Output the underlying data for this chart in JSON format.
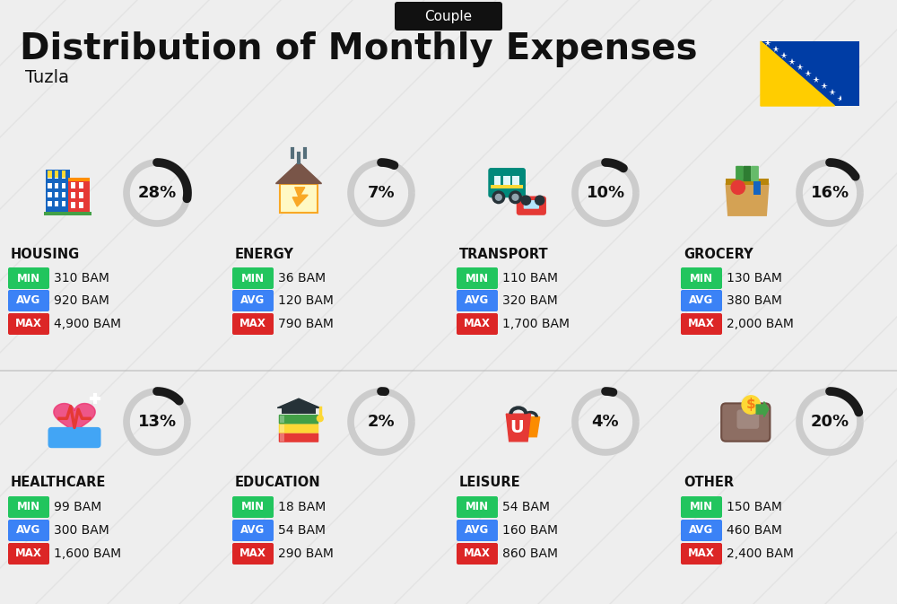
{
  "title": "Distribution of Monthly Expenses",
  "subtitle": "Tuzla",
  "tag": "Couple",
  "bg_color": "#eeeeee",
  "categories": [
    {
      "name": "HOUSING",
      "pct": 28,
      "min": "310 BAM",
      "avg": "920 BAM",
      "max": "4,900 BAM",
      "col": 0,
      "row": 0
    },
    {
      "name": "ENERGY",
      "pct": 7,
      "min": "36 BAM",
      "avg": "120 BAM",
      "max": "790 BAM",
      "col": 1,
      "row": 0
    },
    {
      "name": "TRANSPORT",
      "pct": 10,
      "min": "110 BAM",
      "avg": "320 BAM",
      "max": "1,700 BAM",
      "col": 2,
      "row": 0
    },
    {
      "name": "GROCERY",
      "pct": 16,
      "min": "130 BAM",
      "avg": "380 BAM",
      "max": "2,000 BAM",
      "col": 3,
      "row": 0
    },
    {
      "name": "HEALTHCARE",
      "pct": 13,
      "min": "99 BAM",
      "avg": "300 BAM",
      "max": "1,600 BAM",
      "col": 0,
      "row": 1
    },
    {
      "name": "EDUCATION",
      "pct": 2,
      "min": "18 BAM",
      "avg": "54 BAM",
      "max": "290 BAM",
      "col": 1,
      "row": 1
    },
    {
      "name": "LEISURE",
      "pct": 4,
      "min": "54 BAM",
      "avg": "160 BAM",
      "max": "860 BAM",
      "col": 2,
      "row": 1
    },
    {
      "name": "OTHER",
      "pct": 20,
      "min": "150 BAM",
      "avg": "460 BAM",
      "max": "2,400 BAM",
      "col": 3,
      "row": 1
    }
  ],
  "color_min": "#22c55e",
  "color_avg": "#3b82f6",
  "color_max": "#dc2626",
  "color_dark": "#111111",
  "ring_filled": "#1a1a1a",
  "ring_empty": "#cccccc",
  "tag_bg": "#111111",
  "tag_fg": "#ffffff",
  "flag_blue": "#003DA5",
  "flag_yellow": "#FFCD00"
}
